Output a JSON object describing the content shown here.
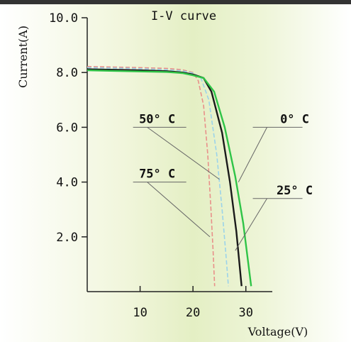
{
  "chart_data": {
    "type": "line",
    "title": "I-V curve",
    "xlabel": "Voltage(V)",
    "ylabel": "Current(A)",
    "xlim": [
      0,
      35
    ],
    "ylim": [
      0,
      10
    ],
    "x_ticks": [
      {
        "value": 10,
        "label": "10"
      },
      {
        "value": 20,
        "label": "20"
      },
      {
        "value": 30,
        "label": "30"
      }
    ],
    "y_ticks": [
      {
        "value": 2,
        "label": "2.0"
      },
      {
        "value": 4,
        "label": "4.0"
      },
      {
        "value": 6,
        "label": "6.0"
      },
      {
        "value": 8,
        "label": "8.0"
      },
      {
        "value": 10,
        "label": "10.0"
      }
    ],
    "grid": false,
    "series": [
      {
        "name": "75° C",
        "color": "#e8908a",
        "dash": true,
        "points": [
          [
            0,
            8.22
          ],
          [
            5,
            8.2
          ],
          [
            10,
            8.18
          ],
          [
            15,
            8.15
          ],
          [
            18,
            8.1
          ],
          [
            20,
            8.0
          ],
          [
            21,
            7.7
          ],
          [
            22,
            6.8
          ],
          [
            22.8,
            5.0
          ],
          [
            23.4,
            3.0
          ],
          [
            23.8,
            1.5
          ],
          [
            24.1,
            0.2
          ]
        ]
      },
      {
        "name": "50° C",
        "color": "#9bd3ea",
        "dash": true,
        "points": [
          [
            0,
            8.18
          ],
          [
            5,
            8.16
          ],
          [
            10,
            8.14
          ],
          [
            15,
            8.1
          ],
          [
            18,
            8.06
          ],
          [
            20,
            7.98
          ],
          [
            21.5,
            7.8
          ],
          [
            23,
            7.0
          ],
          [
            24.5,
            5.0
          ],
          [
            25.5,
            3.0
          ],
          [
            26.3,
            1.2
          ],
          [
            26.7,
            0.2
          ]
        ]
      },
      {
        "name": "25° C",
        "color": "#1a1a1a",
        "dash": false,
        "points": [
          [
            0,
            8.12
          ],
          [
            5,
            8.1
          ],
          [
            10,
            8.08
          ],
          [
            15,
            8.05
          ],
          [
            18,
            8.0
          ],
          [
            20,
            7.93
          ],
          [
            22,
            7.8
          ],
          [
            23.5,
            7.3
          ],
          [
            25.5,
            5.8
          ],
          [
            27,
            4.0
          ],
          [
            28.2,
            2.2
          ],
          [
            29.2,
            0.2
          ]
        ]
      },
      {
        "name": "0° C",
        "color": "#2fc447",
        "dash": false,
        "points": [
          [
            0,
            8.08
          ],
          [
            5,
            8.06
          ],
          [
            10,
            8.04
          ],
          [
            15,
            8.02
          ],
          [
            18,
            7.98
          ],
          [
            20,
            7.9
          ],
          [
            22,
            7.8
          ],
          [
            24,
            7.3
          ],
          [
            26,
            6.0
          ],
          [
            28,
            4.2
          ],
          [
            29.5,
            2.5
          ],
          [
            31,
            0.2
          ]
        ]
      }
    ],
    "annotations": [
      {
        "text": "50° C",
        "series": "50° C",
        "label_x": 8,
        "label_y": 6.0,
        "target_x": 25.0,
        "target_y": 4.1
      },
      {
        "text": "75° C",
        "series": "75° C",
        "label_x": 8,
        "label_y": 4.0,
        "target_x": 23.2,
        "target_y": 2.0
      },
      {
        "text": "0° C",
        "series": "0° C",
        "label_x": 34,
        "label_y": 6.0,
        "target_x": 28.6,
        "target_y": 4.0
      },
      {
        "text": "25° C",
        "series": "25° C",
        "label_x": 34,
        "label_y": 3.4,
        "target_x": 28.0,
        "target_y": 1.5
      }
    ]
  }
}
